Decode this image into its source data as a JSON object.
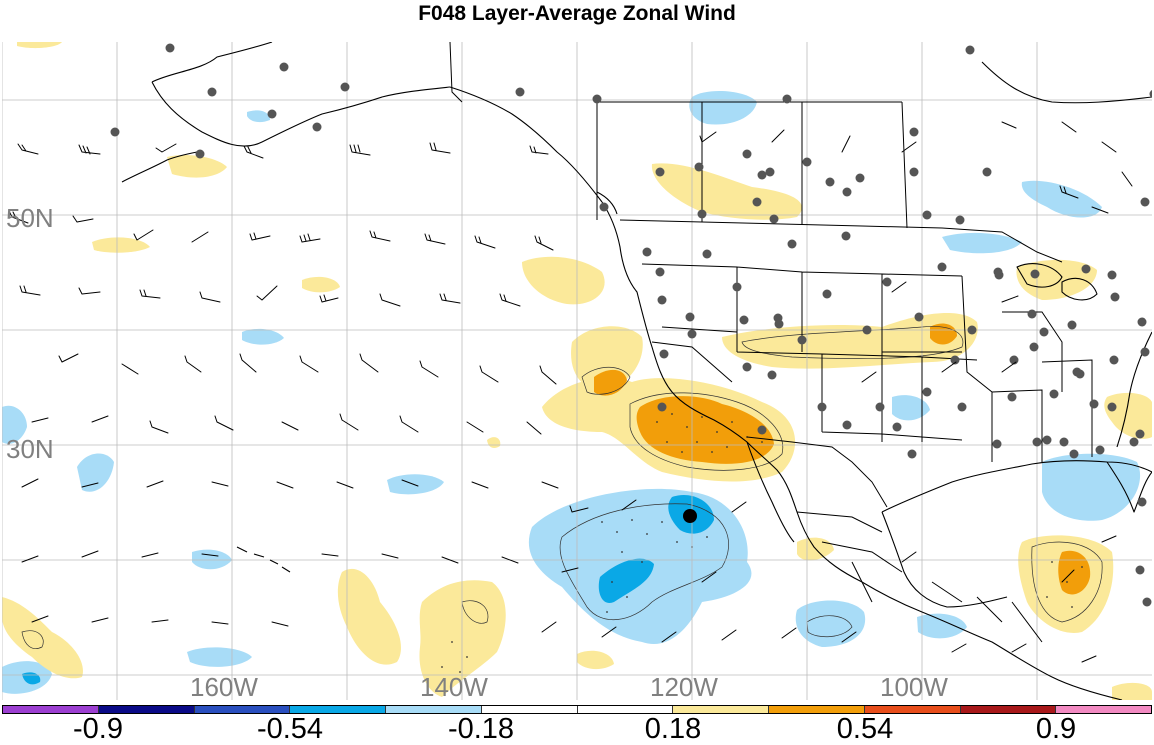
{
  "title": "F048 Layer-Average Zonal Wind",
  "map": {
    "lat_labels": [
      "50N",
      "30N"
    ],
    "lon_labels": [
      "160W",
      "140W",
      "120W",
      "100W"
    ]
  },
  "colorbar": {
    "colors": [
      "#9c3fd1",
      "#0a0a87",
      "#2a4fbf",
      "#0aa8e6",
      "#a8dcf7",
      "#ffffff",
      "#ffffff",
      "#fbe99a",
      "#f29e0a",
      "#e84e1b",
      "#a8181a",
      "#f28ac2"
    ],
    "tick_labels": [
      "-0.9",
      "-0.54",
      "-0.18",
      "0.18",
      "0.54",
      "0.9"
    ]
  },
  "shading": {
    "positive_light": "#fbe99a",
    "positive_mid": "#f29e0a",
    "negative_light": "#a8dcf7",
    "negative_mid": "#0aa8e6"
  }
}
